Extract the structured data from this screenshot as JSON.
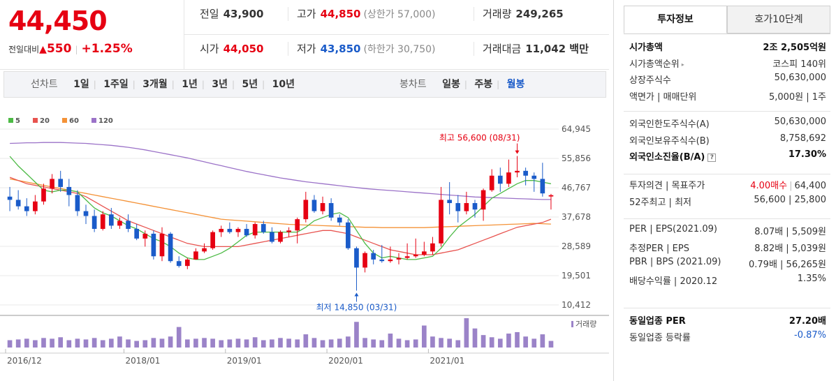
{
  "quote": {
    "price": "44,450",
    "change_label": "전일대비",
    "change_arrow": "▲",
    "change_value": "550",
    "change_rate": "+1.25%"
  },
  "info": {
    "prev_close": {
      "label": "전일",
      "value": "43,900"
    },
    "high": {
      "label": "고가",
      "value": "44,850",
      "sub": "(상한가 57,000)"
    },
    "volume": {
      "label": "거래량",
      "value": "249,265"
    },
    "open": {
      "label": "시가",
      "value": "44,050"
    },
    "low": {
      "label": "저가",
      "value": "43,850",
      "sub": "(하한가 30,750)"
    },
    "trade_value": {
      "label": "거래대금",
      "value": "11,042 백만"
    }
  },
  "period_tabs": {
    "line_title": "선차트",
    "line_items": [
      "1일",
      "1주일",
      "3개월",
      "1년",
      "3년",
      "5년",
      "10년"
    ],
    "candle_title": "봉차트",
    "candle_items": [
      "일봉",
      "주봉",
      "월봉"
    ],
    "active_candle": "월봉",
    "separator": "|"
  },
  "chart_data": {
    "type": "candlestick",
    "legend": [
      {
        "name": "5",
        "color": "#4cba45"
      },
      {
        "name": "20",
        "color": "#e8534f"
      },
      {
        "name": "60",
        "color": "#f49237"
      },
      {
        "name": "120",
        "color": "#9b72c8"
      }
    ],
    "y_ticks": [
      "64,945",
      "55,856",
      "46,767",
      "37,678",
      "28,589",
      "19,501",
      "10,412"
    ],
    "ylim": [
      10412,
      64945
    ],
    "x_labels": [
      "2016/12",
      "2018/01",
      "2019/01",
      "2020/01",
      "2021/01"
    ],
    "volume_legend": "거래량",
    "high_annotation": "최고 56,600 (08/31)",
    "low_annotation": "최저 14,850 (03/31)",
    "up_color": "#e60012",
    "down_color": "#1a5bc9",
    "candles": [
      [
        44000,
        47000,
        39500,
        43000
      ],
      [
        43000,
        46000,
        40000,
        41000
      ],
      [
        41000,
        43500,
        38000,
        39500
      ],
      [
        39500,
        44500,
        38500,
        42500
      ],
      [
        42500,
        48000,
        41500,
        46500
      ],
      [
        46500,
        51000,
        45000,
        49500
      ],
      [
        49500,
        52000,
        45500,
        47000
      ],
      [
        47000,
        49500,
        41000,
        44500
      ],
      [
        44500,
        46000,
        38000,
        39500
      ],
      [
        39500,
        41500,
        35500,
        38000
      ],
      [
        38000,
        40000,
        33000,
        34000
      ],
      [
        34000,
        39500,
        33500,
        38500
      ],
      [
        38500,
        40500,
        34000,
        35000
      ],
      [
        35000,
        37500,
        34000,
        36500
      ],
      [
        36500,
        38500,
        33000,
        34000
      ],
      [
        34000,
        35500,
        30500,
        31000
      ],
      [
        31000,
        33500,
        28500,
        32500
      ],
      [
        32500,
        33500,
        24500,
        25500
      ],
      [
        25500,
        34500,
        24000,
        32500
      ],
      [
        32500,
        33000,
        23500,
        24000
      ],
      [
        24000,
        25500,
        22000,
        22500
      ],
      [
        22500,
        25000,
        21500,
        24500
      ],
      [
        24500,
        28000,
        24500,
        27000
      ],
      [
        27000,
        29500,
        26500,
        28000
      ],
      [
        28000,
        33500,
        27500,
        33000
      ],
      [
        33000,
        35000,
        31500,
        34000
      ],
      [
        34000,
        36000,
        32500,
        33000
      ],
      [
        33000,
        34500,
        31500,
        34000
      ],
      [
        34000,
        35500,
        31500,
        32000
      ],
      [
        32000,
        36000,
        31000,
        35500
      ],
      [
        35500,
        36500,
        32500,
        33000
      ],
      [
        33000,
        34500,
        29500,
        30000
      ],
      [
        30000,
        33500,
        29500,
        33000
      ],
      [
        33000,
        34500,
        31500,
        33500
      ],
      [
        33500,
        37500,
        29500,
        37000
      ],
      [
        37000,
        45500,
        36000,
        43000
      ],
      [
        43000,
        44500,
        39000,
        39500
      ],
      [
        39500,
        44000,
        38500,
        42000
      ],
      [
        42000,
        43500,
        36500,
        37500
      ],
      [
        37500,
        38500,
        35000,
        36000
      ],
      [
        36000,
        37000,
        27500,
        28000
      ],
      [
        28000,
        28500,
        14850,
        22000
      ],
      [
        22000,
        27000,
        20500,
        26500
      ],
      [
        26500,
        27500,
        23000,
        24500
      ],
      [
        24500,
        29000,
        23500,
        24000
      ],
      [
        24000,
        28500,
        23500,
        24500
      ],
      [
        24500,
        26500,
        23000,
        25000
      ],
      [
        25000,
        29500,
        24500,
        25500
      ],
      [
        25500,
        31000,
        25000,
        26000
      ],
      [
        26000,
        30000,
        25500,
        27000
      ],
      [
        27000,
        31500,
        26000,
        29500
      ],
      [
        29500,
        47000,
        28500,
        43000
      ],
      [
        43000,
        48500,
        38500,
        42000
      ],
      [
        42000,
        44500,
        36000,
        39500
      ],
      [
        39500,
        45500,
        38500,
        42000
      ],
      [
        42000,
        43000,
        37500,
        40000
      ],
      [
        40000,
        46500,
        36500,
        46000
      ],
      [
        46000,
        52500,
        45500,
        50500
      ],
      [
        50500,
        53000,
        45500,
        48000
      ],
      [
        48000,
        55500,
        47000,
        51500
      ],
      [
        51500,
        56600,
        50000,
        52000
      ],
      [
        52000,
        53000,
        47500,
        50500
      ],
      [
        50500,
        51500,
        45500,
        49500
      ],
      [
        49500,
        54500,
        44000,
        45000
      ],
      [
        44050,
        44850,
        40000,
        44450
      ]
    ],
    "volumes": [
      20,
      22,
      24,
      20,
      26,
      24,
      28,
      20,
      24,
      22,
      26,
      20,
      24,
      30,
      22,
      18,
      20,
      26,
      24,
      30,
      56,
      22,
      24,
      26,
      24,
      20,
      22,
      24,
      22,
      28,
      20,
      22,
      26,
      24,
      22,
      36,
      26,
      20,
      22,
      24,
      30,
      70,
      26,
      22,
      20,
      38,
      24,
      20,
      22,
      60,
      30,
      26,
      24,
      20,
      80,
      52,
      34,
      28,
      24,
      38,
      42,
      30,
      24,
      36,
      18
    ],
    "ma5": [
      56500,
      53500,
      51000,
      48500,
      46000,
      45500,
      46000,
      46000,
      45500,
      43000,
      40500,
      39000,
      38000,
      36500,
      35000,
      34000,
      32500,
      31000,
      30000,
      28500,
      26500,
      25000,
      24500,
      24500,
      25500,
      26500,
      28000,
      30000,
      32000,
      33000,
      33000,
      33000,
      33000,
      33000,
      33000,
      34500,
      36500,
      37500,
      38500,
      39000,
      37500,
      33500,
      29500,
      26500,
      25000,
      25500,
      25000,
      24500,
      24500,
      25000,
      25500,
      28000,
      31500,
      34500,
      36500,
      38500,
      41000,
      43500,
      45000,
      46500,
      48000,
      49000,
      49000,
      48500,
      48000
    ],
    "ma20": [
      50000,
      49000,
      48000,
      47500,
      47000,
      46500,
      46000,
      45500,
      45000,
      44000,
      42500,
      41000,
      39500,
      38000,
      36500,
      35500,
      34500,
      33500,
      32500,
      31500,
      30500,
      29500,
      29000,
      28500,
      28500,
      28500,
      28500,
      28500,
      29000,
      29500,
      30000,
      30500,
      31000,
      31500,
      32000,
      32500,
      33000,
      33500,
      33500,
      33000,
      32500,
      31500,
      30500,
      29500,
      28500,
      27500,
      27000,
      26500,
      26000,
      26000,
      26000,
      26500,
      27000,
      27500,
      28500,
      29500,
      30500,
      31500,
      32500,
      33500,
      34500,
      35000,
      35500,
      36000,
      37000
    ],
    "ma60": [
      49500,
      49000,
      48500,
      48000,
      47500,
      47000,
      46500,
      46000,
      45500,
      45000,
      44500,
      44000,
      43500,
      43000,
      42500,
      42000,
      41500,
      41000,
      40500,
      40000,
      39500,
      39000,
      38500,
      38000,
      37500,
      37000,
      36800,
      36600,
      36400,
      36200,
      36000,
      35800,
      35600,
      35400,
      35300,
      35200,
      35100,
      35000,
      34900,
      34800,
      34700,
      34600,
      34500,
      34500,
      34400,
      34400,
      34400,
      34400,
      34400,
      34400,
      34500,
      34600,
      34700,
      34800,
      34900,
      35000,
      35100,
      35200,
      35300,
      35400,
      35500,
      35600,
      35700,
      35600,
      35500
    ],
    "ma120": [
      60500,
      60600,
      60700,
      60700,
      60800,
      60800,
      60800,
      60700,
      60600,
      60500,
      60300,
      60100,
      59900,
      59600,
      59300,
      58900,
      58500,
      58000,
      57500,
      57000,
      56500,
      56000,
      55400,
      54800,
      54200,
      53600,
      53000,
      52400,
      51800,
      51300,
      50800,
      50300,
      49800,
      49400,
      49000,
      48600,
      48300,
      48000,
      47700,
      47400,
      47100,
      46800,
      46500,
      46300,
      46100,
      45900,
      45700,
      45500,
      45300,
      45100,
      44900,
      44700,
      44500,
      44300,
      44100,
      43900,
      43800,
      43700,
      43600,
      43500,
      43400,
      43300,
      43200,
      43100,
      43100
    ]
  },
  "right_panel": {
    "tab_active": "투자정보",
    "tab_other": "호가10단계",
    "rows_a": [
      {
        "k": "시가총액",
        "v": "2조 2,505억원",
        "bold": true
      },
      {
        "k": "시가총액순위",
        "v": "코스피 140위",
        "tri": true
      },
      {
        "k": "상장주식수",
        "v": "50,630,000"
      },
      {
        "k": "액면가 | 매매단위",
        "v": "5,000원 | 1주"
      }
    ],
    "rows_b": [
      {
        "k": "외국인한도주식수(A)",
        "v": "50,630,000"
      },
      {
        "k": "외국인보유주식수(B)",
        "v": "8,758,692"
      },
      {
        "k": "외국인소진율(B/A)",
        "v": "17.30%",
        "bold": true,
        "q": true
      }
    ],
    "rows_c": [
      {
        "k": "투자의견 | 목표주가",
        "v_red": "4.00매수",
        "v": "64,400"
      },
      {
        "k": "52주최고 | 최저",
        "v": "56,600 | 25,800"
      }
    ],
    "rows_d": [
      {
        "k": "PER | EPS(2021.09)",
        "v": "8.07배 | 5,509원"
      },
      {
        "k": "추정PER | EPS",
        "v": "8.82배 | 5,039원"
      },
      {
        "k": "PBR | BPS (2021.09)",
        "v": "0.79배 | 56,265원"
      },
      {
        "k": "배당수익률 | 2020.12",
        "v": "1.35%"
      }
    ],
    "rows_e": [
      {
        "k": "동일업종 PER",
        "v": "27.20배",
        "bold": true
      },
      {
        "k": "동일업종 등락률",
        "v": "-0.87%",
        "blue": true
      }
    ],
    "help_glyph": "?",
    "tri_glyph": "▸"
  }
}
